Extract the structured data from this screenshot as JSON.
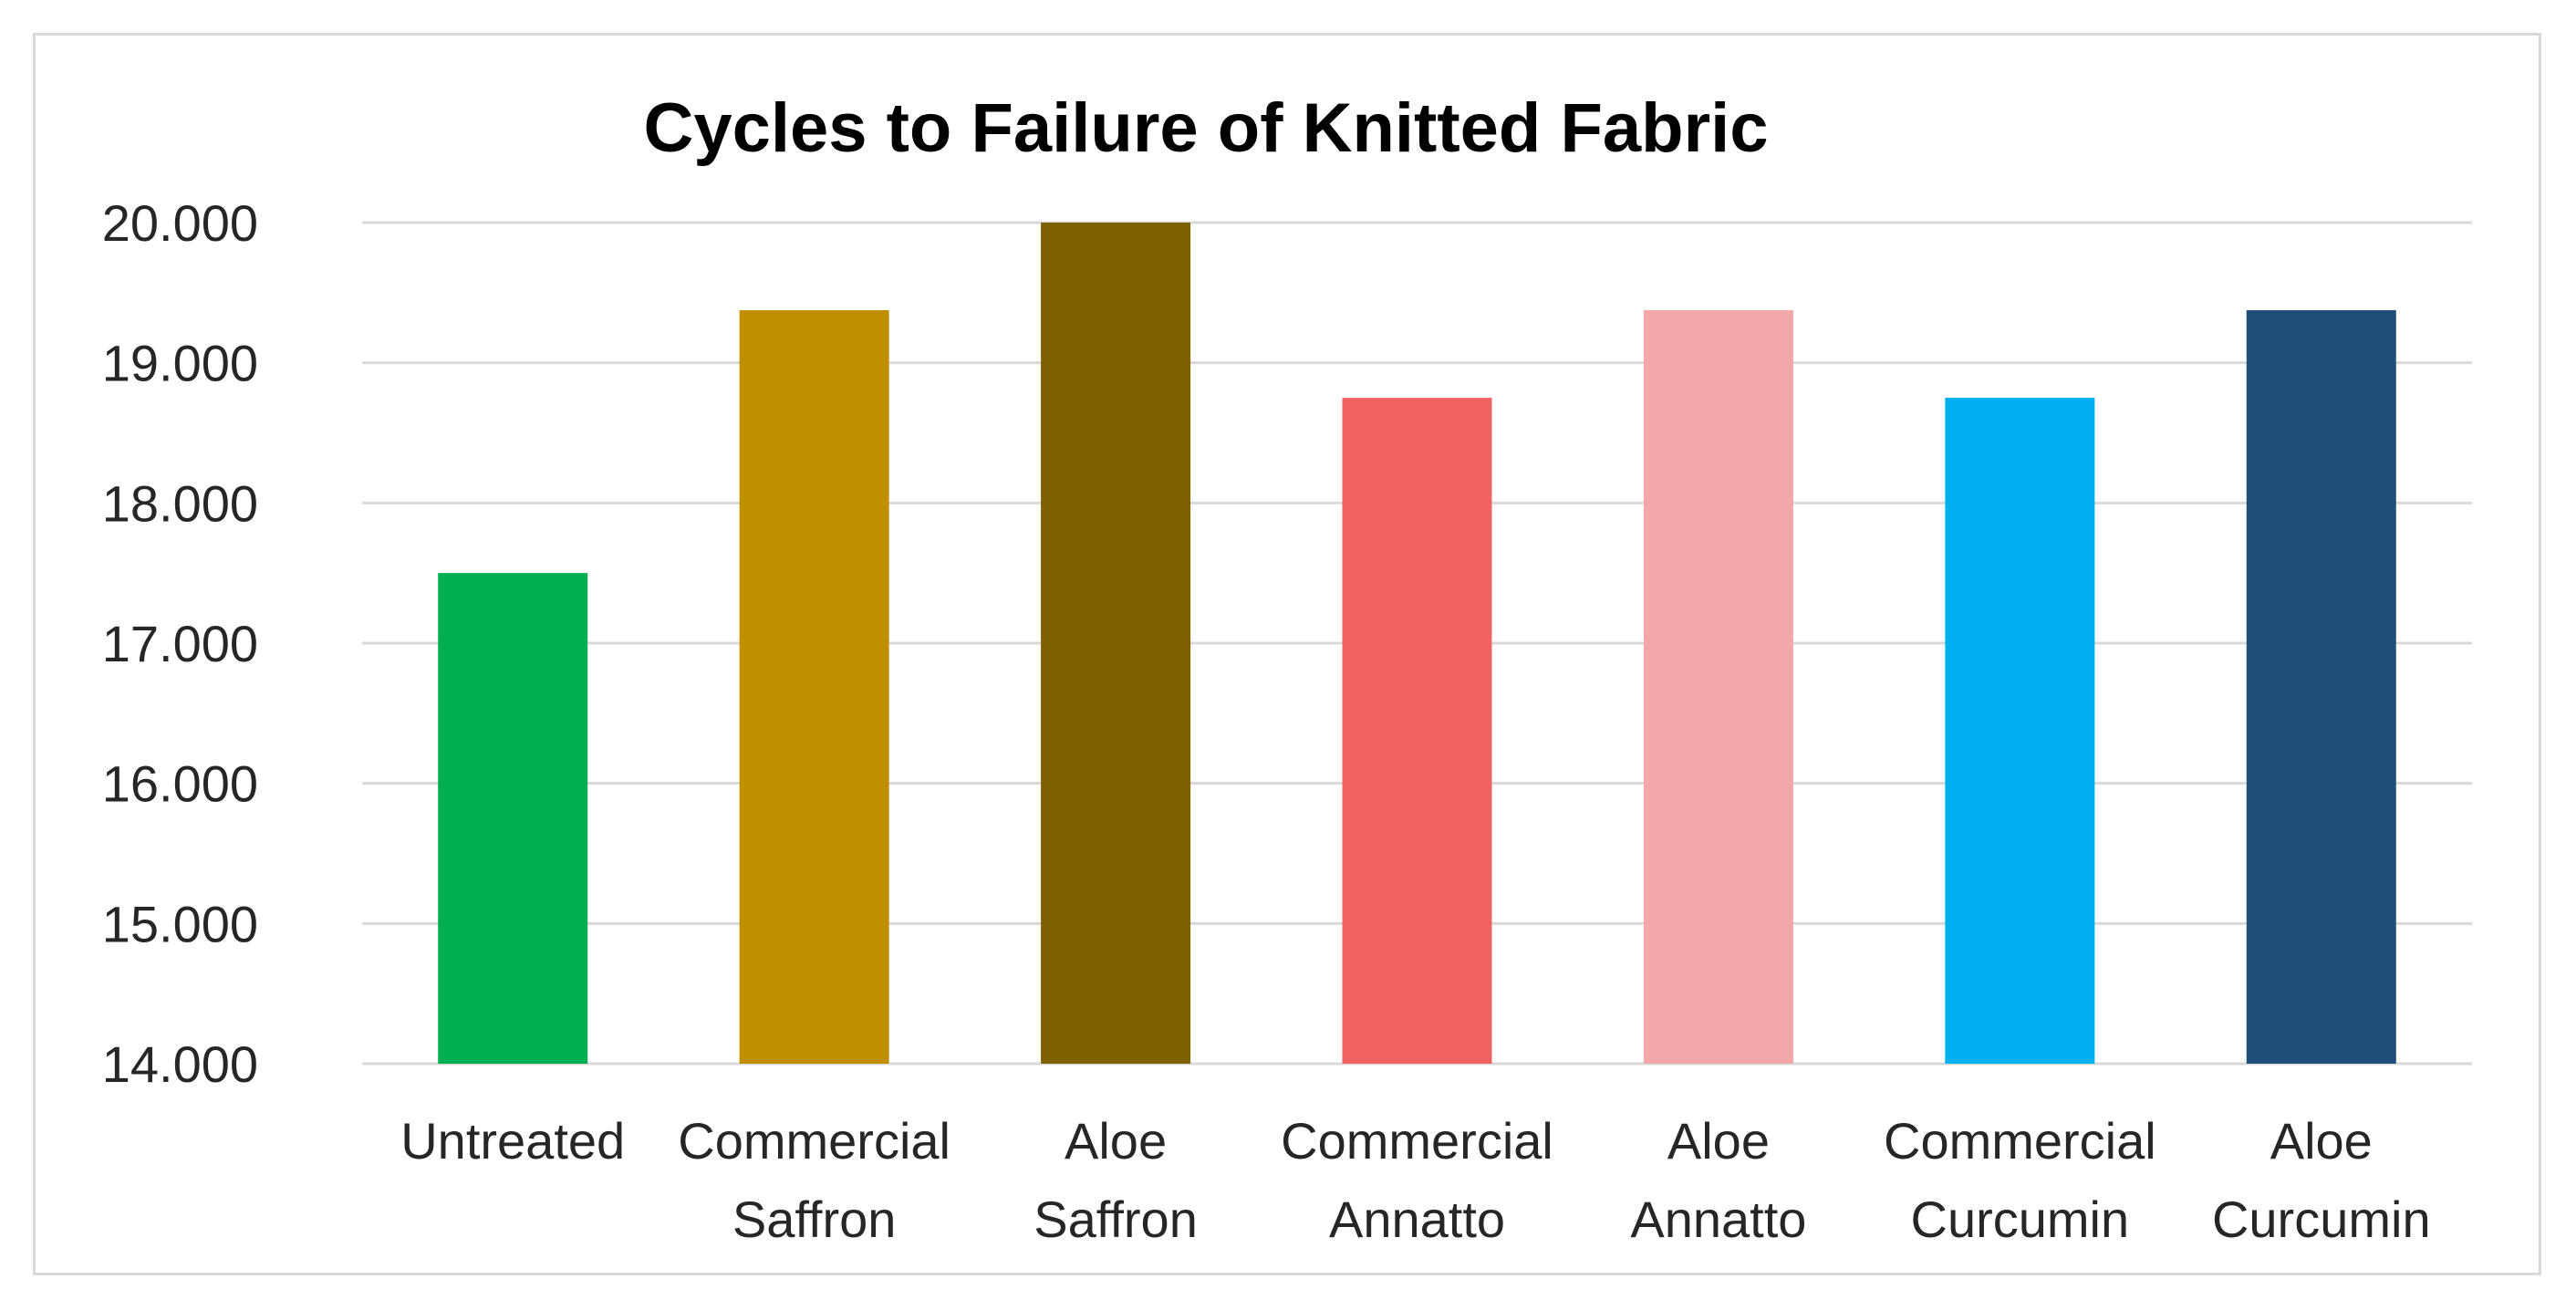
{
  "chart_data": {
    "type": "bar",
    "title": "Cycles to Failure of Knitted Fabric",
    "xlabel": "",
    "ylabel": "",
    "ylim": [
      14000,
      20000
    ],
    "yticks": [
      14000,
      15000,
      16000,
      17000,
      18000,
      19000,
      20000
    ],
    "ytick_labels": [
      "14.000",
      "15.000",
      "16.000",
      "17.000",
      "18.000",
      "19.000",
      "20.000"
    ],
    "grid": true,
    "legend": "none",
    "categories": [
      [
        "Untreated"
      ],
      [
        "Commercial",
        "Saffron"
      ],
      [
        "Aloe",
        "Saffron"
      ],
      [
        "Commercial",
        "Annatto"
      ],
      [
        "Aloe",
        "Annatto"
      ],
      [
        "Commercial",
        "Curcumin"
      ],
      [
        "Aloe",
        "Curcumin"
      ]
    ],
    "values": [
      17500,
      19375,
      20000,
      18750,
      19375,
      18750,
      19375
    ],
    "colors": [
      "#00b050",
      "#bf8f00",
      "#7f6000",
      "#f16262",
      "#f4a7a9",
      "#00b0f0",
      "#1f4e79"
    ]
  }
}
